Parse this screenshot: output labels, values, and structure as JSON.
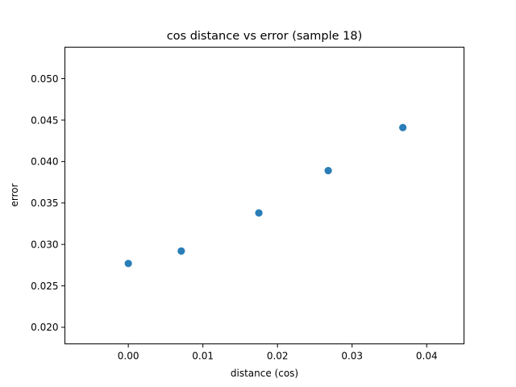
{
  "chart_data": {
    "type": "scatter",
    "title": "cos distance vs error (sample 18)",
    "xlabel": "distance (cos)",
    "ylabel": "error",
    "xlim": [
      -0.0085,
      0.045
    ],
    "ylim": [
      0.018,
      0.0538
    ],
    "xticks": [
      {
        "value": 0.0,
        "label": "0.00"
      },
      {
        "value": 0.01,
        "label": "0.01"
      },
      {
        "value": 0.02,
        "label": "0.02"
      },
      {
        "value": 0.03,
        "label": "0.03"
      },
      {
        "value": 0.04,
        "label": "0.04"
      }
    ],
    "yticks": [
      {
        "value": 0.02,
        "label": "0.020"
      },
      {
        "value": 0.025,
        "label": "0.025"
      },
      {
        "value": 0.03,
        "label": "0.030"
      },
      {
        "value": 0.035,
        "label": "0.035"
      },
      {
        "value": 0.04,
        "label": "0.040"
      },
      {
        "value": 0.045,
        "label": "0.045"
      },
      {
        "value": 0.05,
        "label": "0.050"
      }
    ],
    "grid": false,
    "series": [
      {
        "color": "#1f77b4",
        "points": [
          {
            "x": 0.0,
            "y": 0.0277
          },
          {
            "x": 0.0071,
            "y": 0.0292
          },
          {
            "x": 0.0175,
            "y": 0.0338
          },
          {
            "x": 0.0268,
            "y": 0.0389
          },
          {
            "x": 0.0368,
            "y": 0.0441
          }
        ]
      }
    ]
  }
}
